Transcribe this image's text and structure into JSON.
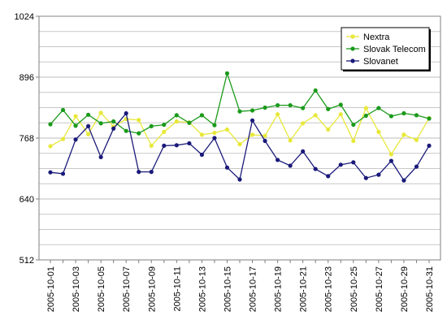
{
  "chart_data": {
    "type": "line",
    "title": "",
    "xlabel": "",
    "ylabel": "",
    "ylim": [
      512,
      1024
    ],
    "yticks": [
      512,
      640,
      768,
      896,
      1024
    ],
    "grid": true,
    "legend_position": "top-right",
    "x": [
      "2005-10-01",
      "2005-10-02",
      "2005-10-03",
      "2005-10-04",
      "2005-10-05",
      "2005-10-06",
      "2005-10-07",
      "2005-10-08",
      "2005-10-09",
      "2005-10-10",
      "2005-10-11",
      "2005-10-12",
      "2005-10-13",
      "2005-10-14",
      "2005-10-15",
      "2005-10-16",
      "2005-10-17",
      "2005-10-18",
      "2005-10-19",
      "2005-10-20",
      "2005-10-21",
      "2005-10-22",
      "2005-10-23",
      "2005-10-24",
      "2005-10-25",
      "2005-10-26",
      "2005-10-27",
      "2005-10-28",
      "2005-10-29",
      "2005-10-30",
      "2005-10-31"
    ],
    "xtick_labels": [
      "2005-10-01",
      "2005-10-03",
      "2005-10-05",
      "2005-10-07",
      "2005-10-09",
      "2005-10-11",
      "2005-10-13",
      "2005-10-15",
      "2005-10-17",
      "2005-10-19",
      "2005-10-21",
      "2005-10-23",
      "2005-10-25",
      "2005-10-27",
      "2005-10-29",
      "2005-10-31"
    ],
    "series": [
      {
        "name": "Nextra",
        "color": "#e8e83a",
        "values": [
          751,
          766,
          814,
          776,
          821,
          792,
          808,
          806,
          752,
          781,
          803,
          801,
          775,
          779,
          786,
          755,
          775,
          773,
          818,
          763,
          799,
          816,
          786,
          818,
          762,
          831,
          781,
          734,
          775,
          764,
          810
        ]
      },
      {
        "name": "Slovak Telecom",
        "color": "#1a9a1a",
        "values": [
          797,
          827,
          794,
          817,
          799,
          803,
          783,
          778,
          793,
          796,
          816,
          800,
          816,
          795,
          904,
          824,
          826,
          832,
          837,
          837,
          831,
          868,
          829,
          838,
          796,
          815,
          831,
          814,
          820,
          816,
          809
        ]
      },
      {
        "name": "Slovanet",
        "color": "#1a1a7a",
        "values": [
          696,
          693,
          765,
          793,
          728,
          788,
          820,
          697,
          697,
          752,
          753,
          757,
          733,
          768,
          706,
          681,
          805,
          762,
          722,
          710,
          740,
          703,
          688,
          712,
          717,
          684,
          691,
          720,
          679,
          708,
          752
        ]
      }
    ]
  }
}
